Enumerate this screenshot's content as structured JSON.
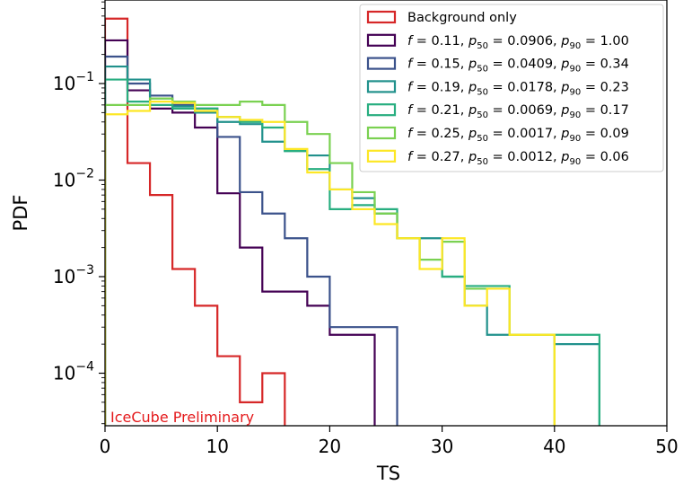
{
  "chart_data": {
    "type": "line",
    "style": "step-histogram",
    "title": "",
    "xlabel": "TS",
    "ylabel": "PDF",
    "xlim": [
      0,
      50
    ],
    "ylim": [
      3e-05,
      0.6
    ],
    "yscale": "log",
    "grid": false,
    "legend_position": "top-right",
    "annotation": "IceCube Preliminary",
    "annotation_color": "#e41a1c",
    "x_ticks": [
      0,
      10,
      20,
      30,
      40,
      50
    ],
    "x_tick_labels": [
      "0",
      "10",
      "20",
      "30",
      "40",
      "50"
    ],
    "y_ticks": [
      0.1,
      0.01,
      0.001,
      0.0001
    ],
    "y_tick_labels": [
      {
        "base": "10",
        "exp": "−1"
      },
      {
        "base": "10",
        "exp": "−2"
      },
      {
        "base": "10",
        "exp": "−3"
      },
      {
        "base": "10",
        "exp": "−4"
      }
    ],
    "bin_edges": [
      0,
      2,
      4,
      6,
      8,
      10,
      12,
      14,
      16,
      18,
      20,
      22,
      24,
      26,
      28,
      30,
      32,
      34,
      36,
      38,
      40,
      42,
      44
    ],
    "series": [
      {
        "name": "Background only",
        "legend": {
          "plain": "Background only"
        },
        "color": "#d62728",
        "values": [
          0.47,
          0.015,
          0.007,
          0.0012,
          0.0005,
          0.00015,
          5e-05,
          0.0001
        ]
      },
      {
        "name": "f = 0.11, p50 = 0.0906, p90 = 1.00",
        "legend": {
          "f": "0.11",
          "p50": "0.0906",
          "p90": "1.00"
        },
        "color": "#440154",
        "values": [
          0.28,
          0.085,
          0.055,
          0.05,
          0.035,
          0.0073,
          0.002,
          0.0007,
          0.0007,
          0.0005,
          0.00025,
          0.00025
        ]
      },
      {
        "name": "f = 0.15, p50 = 0.0409, p90 = 0.34",
        "legend": {
          "f": "0.15",
          "p50": "0.0409",
          "p90": "0.34"
        },
        "color": "#3b528b",
        "values": [
          0.19,
          0.1,
          0.075,
          0.06,
          0.055,
          0.028,
          0.0075,
          0.0045,
          0.0025,
          0.001,
          0.0003,
          0.0003,
          0.0003
        ]
      },
      {
        "name": "f = 0.19, p50 = 0.0178, p90 = 0.23",
        "legend": {
          "f": "0.19",
          "p50": "0.0178",
          "p90": "0.23"
        },
        "color": "#21918c",
        "values": [
          0.15,
          0.11,
          0.07,
          0.058,
          0.05,
          0.04,
          0.038,
          0.025,
          0.02,
          0.018,
          0.008,
          0.0065,
          0.0045,
          0.0025,
          0.0025,
          0.001,
          0.0005,
          0.00025,
          0.00025,
          0.00025,
          0.0002,
          0.0002
        ]
      },
      {
        "name": "f = 0.21, p50 = 0.0069, p90 = 0.17",
        "legend": {
          "f": "0.21",
          "p50": "0.0069",
          "p90": "0.17"
        },
        "color": "#28ae80",
        "values": [
          0.11,
          0.065,
          0.06,
          0.055,
          0.055,
          0.045,
          0.04,
          0.035,
          0.02,
          0.013,
          0.005,
          0.0055,
          0.005,
          0.0025,
          0.0015,
          0.001,
          0.0008,
          0.0008,
          0.00025,
          0.00025,
          0.00025,
          0.00025
        ]
      },
      {
        "name": "f = 0.25, p50 = 0.0017, p90 = 0.09",
        "legend": {
          "f": "0.25",
          "p50": "0.0017",
          "p90": "0.09"
        },
        "color": "#7ad151",
        "values": [
          0.06,
          0.06,
          0.07,
          0.065,
          0.06,
          0.06,
          0.065,
          0.06,
          0.04,
          0.03,
          0.015,
          0.0075,
          0.0045,
          0.0025,
          0.0015,
          0.0023,
          0.00075,
          0.00075,
          0.00025,
          0.00025
        ]
      },
      {
        "name": "f = 0.27, p50 = 0.0012, p90 = 0.06",
        "legend": {
          "f": "0.27",
          "p50": "0.0012",
          "p90": "0.06"
        },
        "color": "#fde725",
        "values": [
          0.048,
          0.052,
          0.065,
          0.063,
          0.052,
          0.045,
          0.042,
          0.04,
          0.021,
          0.012,
          0.008,
          0.005,
          0.0035,
          0.0025,
          0.0012,
          0.0025,
          0.0005,
          0.00075,
          0.00025,
          0.00025
        ]
      }
    ]
  }
}
